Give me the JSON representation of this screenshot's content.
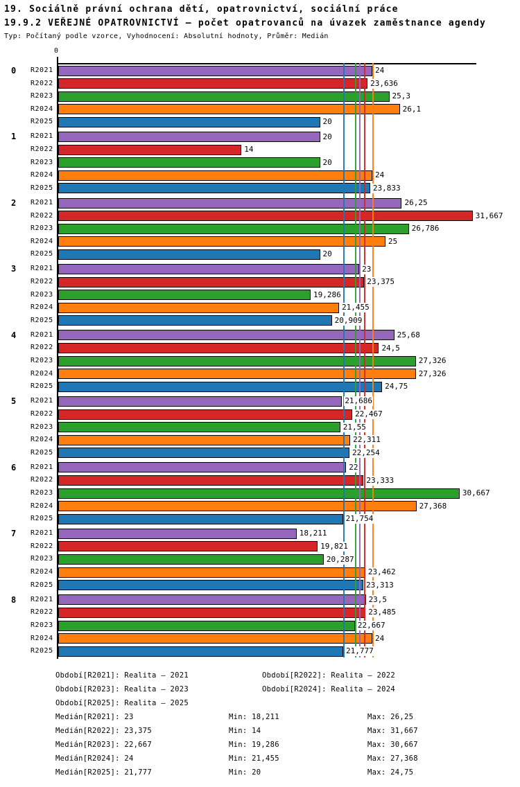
{
  "header": {
    "title1": "19. Sociálně právní ochrana dětí, opatrovnictví, sociální práce",
    "title2": "19.9.2 VEŘEJNÉ OPATROVNICTVÍ – počet opatrovanců na úvazek zaměstnance agendy",
    "subtitle": "Typ: Počítaný podle vzorce, Vyhodnocení: Absolutní hodnoty, Průměr: Medián"
  },
  "chart_data": {
    "type": "bar",
    "orientation": "horizontal",
    "title": "19.9.2 VEŘEJNÉ OPATROVNICTVÍ – počet opatrovanců na úvazek zaměstnance agendy",
    "xlabel": "",
    "ylabel": "",
    "axis": {
      "origin_label": "0",
      "min": 0,
      "max": 32,
      "grid": false
    },
    "categories": [
      "0",
      "1",
      "2",
      "3",
      "4",
      "5",
      "6",
      "7",
      "8"
    ],
    "series": [
      {
        "name": "R2021",
        "color": "#9467bd",
        "values": [
          24,
          20,
          26.25,
          23,
          25.68,
          21.686,
          22,
          18.211,
          23.5
        ],
        "labels": [
          "24",
          "20",
          "26,25",
          "23",
          "25,68",
          "21,686",
          "22",
          "18,211",
          "23,5"
        ]
      },
      {
        "name": "R2022",
        "color": "#d62728",
        "values": [
          23.636,
          14,
          31.667,
          23.375,
          24.5,
          22.467,
          23.333,
          19.821,
          23.485
        ],
        "labels": [
          "23,636",
          "14",
          "31,667",
          "23,375",
          "24,5",
          "22,467",
          "23,333",
          "19,821",
          "23,485"
        ]
      },
      {
        "name": "R2023",
        "color": "#2ca02c",
        "values": [
          25.3,
          20,
          26.786,
          19.286,
          27.326,
          21.55,
          30.667,
          20.287,
          22.667
        ],
        "labels": [
          "25,3",
          "20",
          "26,786",
          "19,286",
          "27,326",
          "21,55",
          "30,667",
          "20,287",
          "22,667"
        ]
      },
      {
        "name": "R2024",
        "color": "#ff7f0e",
        "values": [
          26.1,
          24,
          25,
          21.455,
          27.326,
          22.311,
          27.368,
          23.462,
          24
        ],
        "labels": [
          "26,1",
          "24",
          "25",
          "21,455",
          "27,326",
          "22,311",
          "27,368",
          "23,462",
          "24"
        ]
      },
      {
        "name": "R2025",
        "color": "#1f77b4",
        "values": [
          20,
          23.833,
          20,
          20.909,
          24.75,
          22.254,
          21.754,
          23.313,
          21.777
        ],
        "labels": [
          "20",
          "23,833",
          "20",
          "20,909",
          "24,75",
          "22,254",
          "21,754",
          "23,313",
          "21,777"
        ]
      }
    ],
    "median_lines": [
      {
        "series": "R2021",
        "value": 23,
        "display": "23"
      },
      {
        "series": "R2022",
        "value": 23.375,
        "display": "23,375"
      },
      {
        "series": "R2023",
        "value": 22.667,
        "display": "22,667"
      },
      {
        "series": "R2024",
        "value": 24,
        "display": "24"
      },
      {
        "series": "R2025",
        "value": 21.777,
        "display": "21,777"
      }
    ],
    "legend_position": "bottom"
  },
  "legend": {
    "rows": [
      [
        "Období[R2021]: Realita – 2021",
        "Období[R2022]: Realita – 2022"
      ],
      [
        "Období[R2023]: Realita – 2023",
        "Období[R2024]: Realita – 2024"
      ],
      [
        "Období[R2025]: Realita – 2025"
      ]
    ]
  },
  "stats": {
    "rows": [
      [
        "Medián[R2021]: 23",
        "Min: 18,211",
        "Max: 26,25"
      ],
      [
        "Medián[R2022]: 23,375",
        "Min: 14",
        "Max: 31,667"
      ],
      [
        "Medián[R2023]: 22,667",
        "Min: 19,286",
        "Max: 30,667"
      ],
      [
        "Medián[R2024]: 24",
        "Min: 21,455",
        "Max: 27,368"
      ],
      [
        "Medián[R2025]: 21,777",
        "Min: 20",
        "Max: 24,75"
      ]
    ]
  }
}
